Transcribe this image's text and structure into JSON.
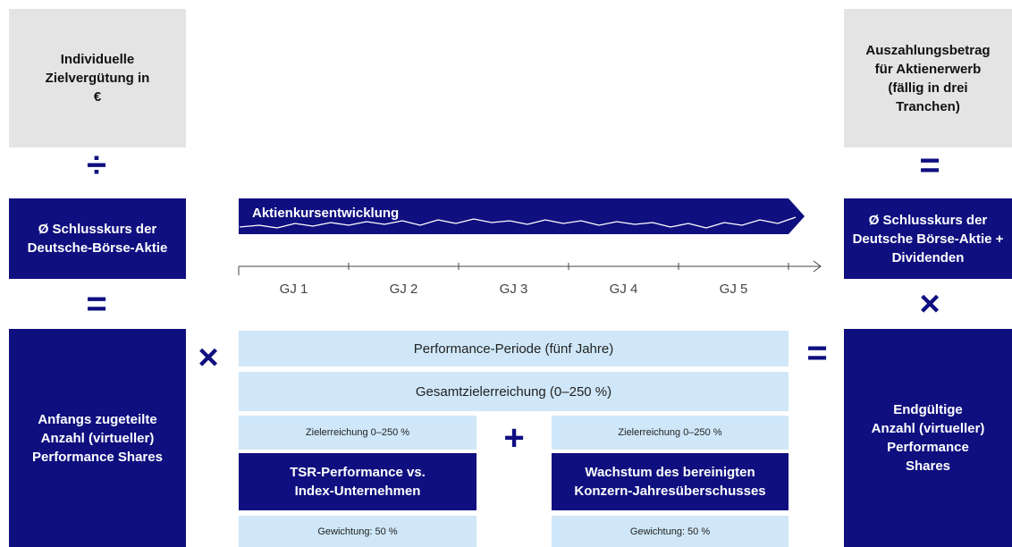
{
  "left": {
    "top": "Individuelle Zielvergütung in €",
    "middle": "Ø Schlusskurs der Deutsche-Börse-Aktie",
    "bottom": "Anfangs zugeteilte Anzahl (virtueller) Performance Shares"
  },
  "operators": {
    "divide": "÷",
    "equals": "=",
    "times": "×",
    "plus": "+"
  },
  "center": {
    "band": "Aktienkursentwicklung",
    "years": [
      "GJ 1",
      "GJ 2",
      "GJ 3",
      "GJ 4",
      "GJ 5"
    ],
    "period": "Performance-Periode (fünf Jahre)",
    "total": "Gesamtzielerreichung (0–250 %)",
    "left": {
      "achievement": "Zielerreichung 0–250 %",
      "label": "TSR-Performance vs. Index-Unternehmen",
      "weighting": "Gewichtung: 50 %"
    },
    "right": {
      "achievement": "Zielerreichung 0–250 %",
      "label": "Wachstum des bereinigten Konzern-Jahresüberschusses",
      "weighting": "Gewichtung: 50 %"
    }
  },
  "right": {
    "top": "Auszahlungsbetrag für Aktienerwerb (fällig in drei Tranchen)",
    "middle": "Ø Schlusskurs der Deutsche Börse-Aktie + Dividenden",
    "bottom": "Endgültige Anzahl (virtueller) Performance Shares"
  }
}
